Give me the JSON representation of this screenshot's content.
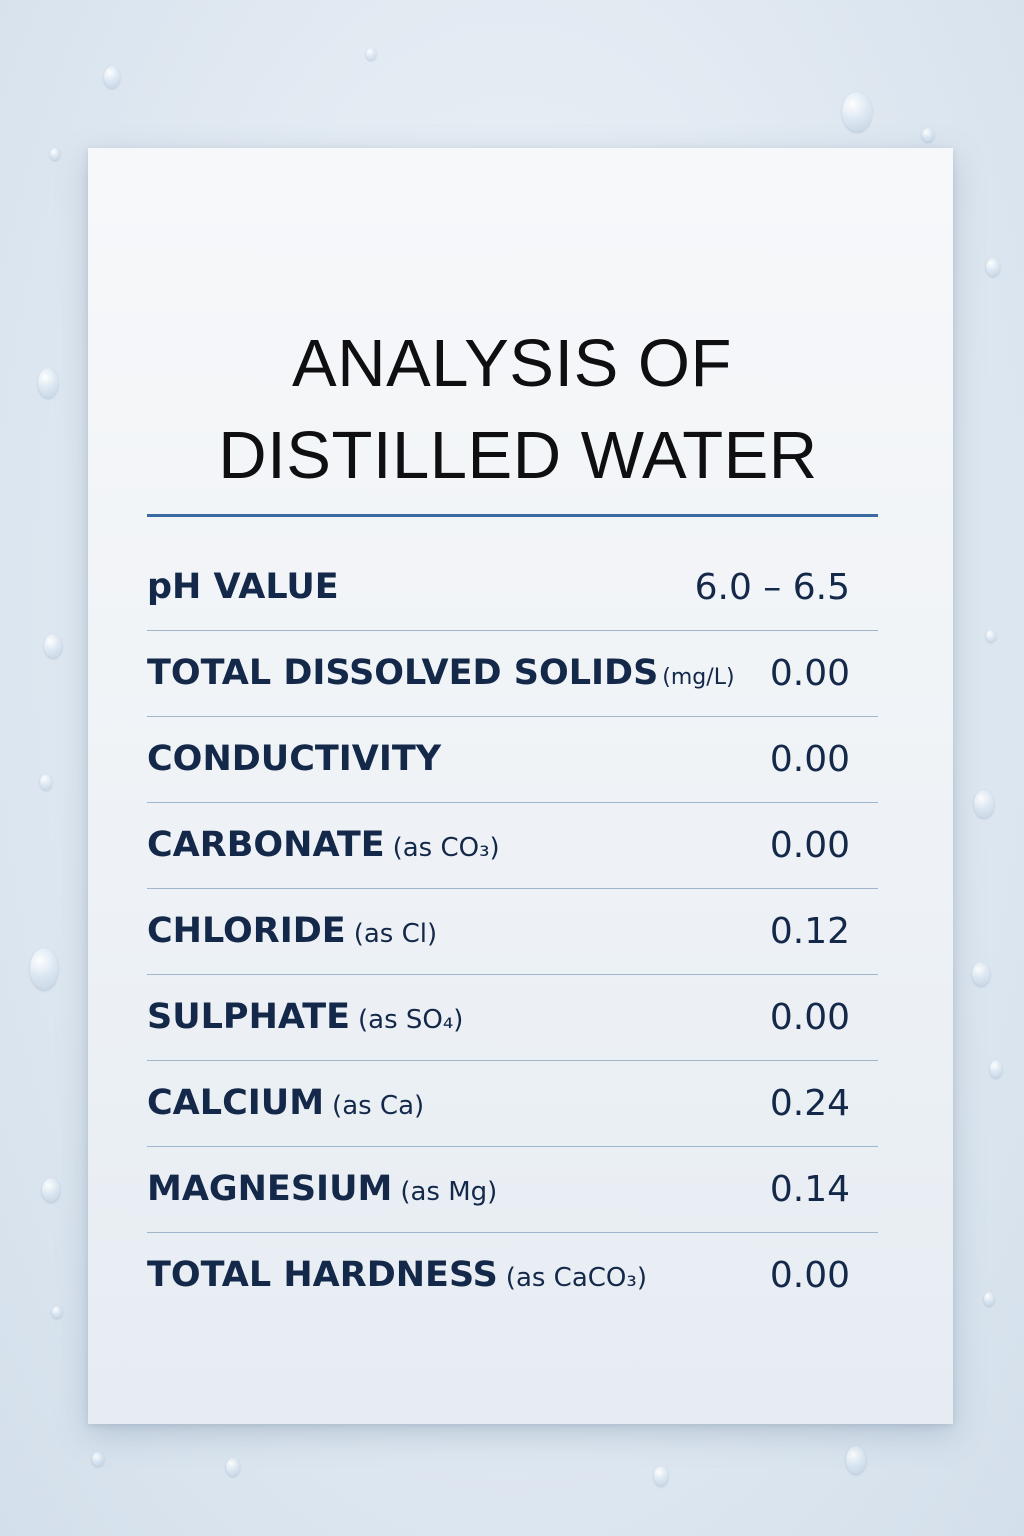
{
  "title": {
    "line1": "ANALYSIS OF",
    "line2": "DISTILLED WATER"
  },
  "rows": [
    {
      "name": "pH VALUE",
      "qualifier": "",
      "unit": "",
      "value": "6.0 – 6.5"
    },
    {
      "name": "TOTAL DISSOLVED SOLIDS",
      "qualifier": "",
      "unit": "(mg/L)",
      "value": "0.00"
    },
    {
      "name": "CONDUCTIVITY",
      "qualifier": "",
      "unit": "",
      "value": "0.00"
    },
    {
      "name": "CARBONATE",
      "qualifier": "(as CO₃)",
      "unit": "",
      "value": "0.00"
    },
    {
      "name": "CHLORIDE",
      "qualifier": "(as Cl)",
      "unit": "",
      "value": "0.12"
    },
    {
      "name": "SULPHATE",
      "qualifier": "(as SO₄)",
      "unit": "",
      "value": "0.00"
    },
    {
      "name": "CALCIUM",
      "qualifier": "(as Ca)",
      "unit": "",
      "value": "0.24"
    },
    {
      "name": "MAGNESIUM",
      "qualifier": "(as Mg)",
      "unit": "",
      "value": "0.14"
    },
    {
      "name": "TOTAL HARDNESS",
      "qualifier": "(as CaCO₃)",
      "unit": "",
      "value": "0.00"
    }
  ],
  "colors": {
    "text": "#14284a",
    "title": "#0f0f12",
    "accent_rule": "#3a6aa0",
    "row_divider": "#9fb6cd",
    "background": "#dfe8f1"
  }
}
